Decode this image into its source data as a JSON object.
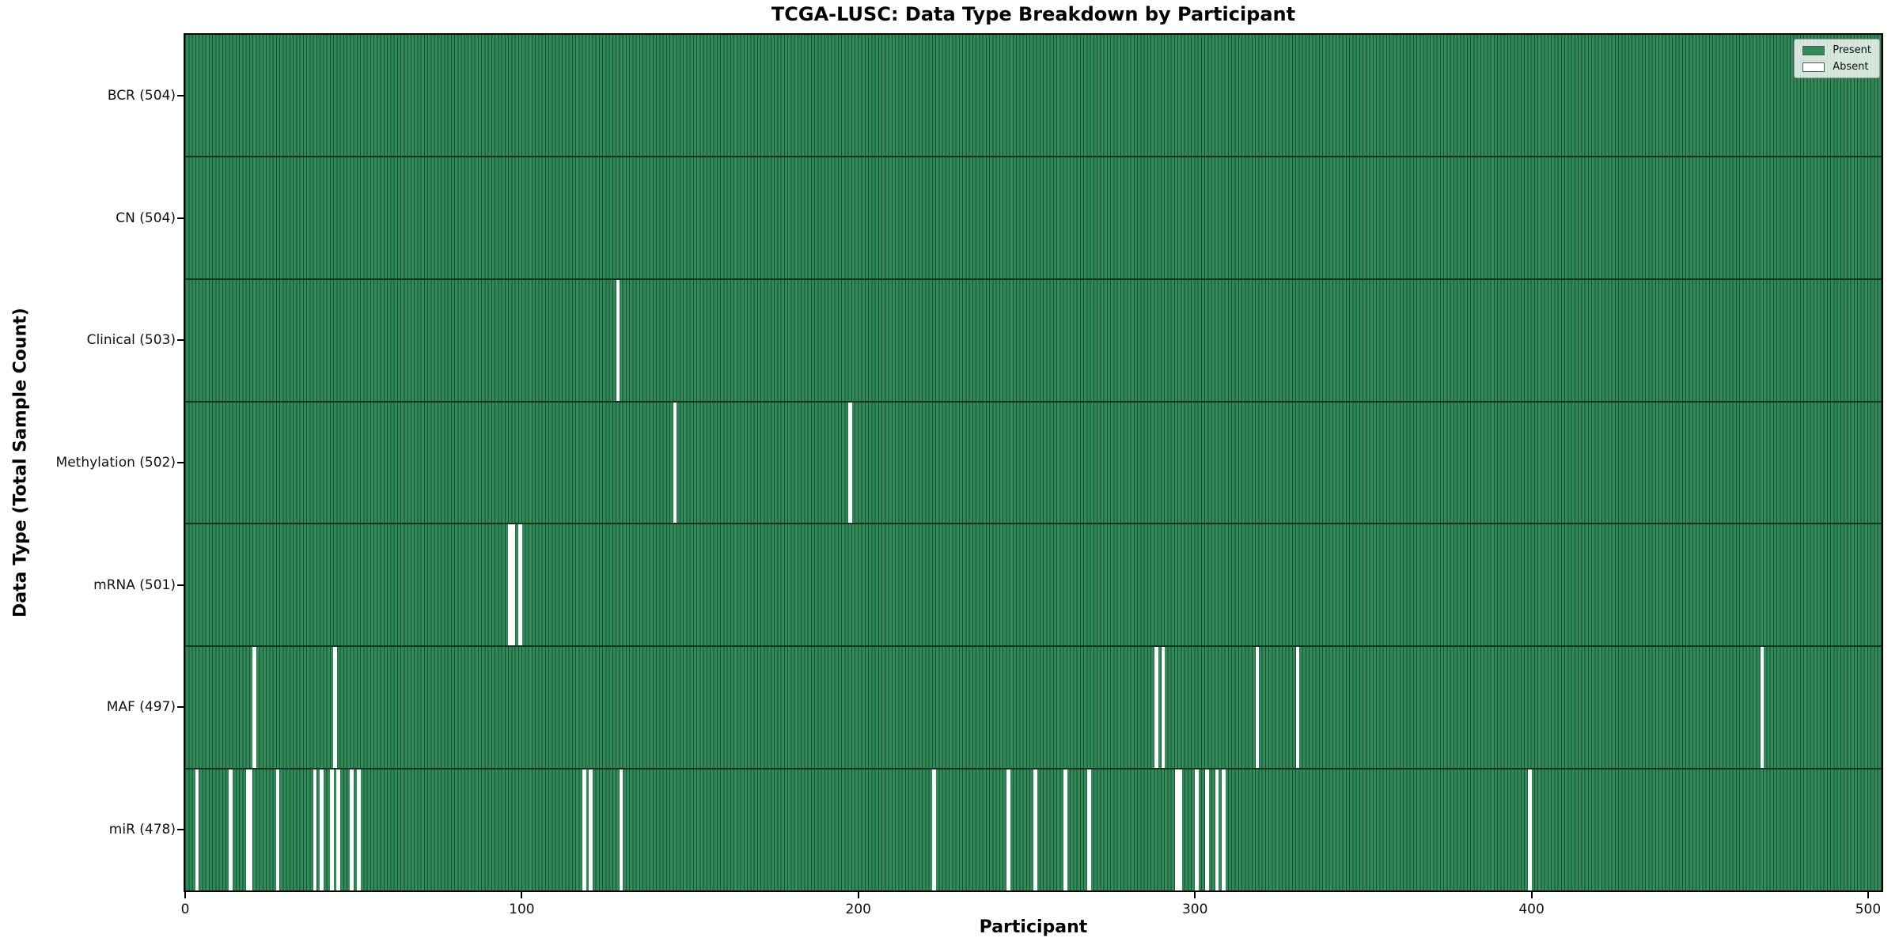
{
  "chart_data": {
    "type": "heatmap",
    "title": "TCGA-LUSC: Data Type Breakdown by Participant",
    "xlabel": "Participant",
    "ylabel": "Data Type (Total Sample Count)",
    "x_ticks": [
      0,
      100,
      200,
      300,
      400,
      500
    ],
    "x_max": 504,
    "grid": false,
    "legend_position": "upper right",
    "legend": [
      {
        "label": "Present",
        "color": "#2f8b58"
      },
      {
        "label": "Absent",
        "color": "#ffffff"
      }
    ],
    "colors": {
      "present_fill": "#2f8b58",
      "bar_edge": "#1f4b33",
      "absent_fill": "#ffffff",
      "spine": "#000000"
    },
    "rows": [
      {
        "label": "BCR (504)",
        "total": 504,
        "absent_participants": []
      },
      {
        "label": "CN (504)",
        "total": 504,
        "absent_participants": []
      },
      {
        "label": "Clinical (503)",
        "total": 503,
        "absent_participants": [
          128
        ]
      },
      {
        "label": "Methylation (502)",
        "total": 502,
        "absent_participants": [
          145,
          197
        ]
      },
      {
        "label": "mRNA (501)",
        "total": 501,
        "absent_participants": [
          96,
          97,
          99
        ]
      },
      {
        "label": "MAF (497)",
        "total": 497,
        "absent_participants": [
          20,
          44,
          288,
          290,
          318,
          330,
          468
        ]
      },
      {
        "label": "miR (478)",
        "total": 478,
        "absent_participants": [
          3,
          13,
          18,
          19,
          27,
          38,
          40,
          43,
          45,
          49,
          51,
          118,
          120,
          129,
          222,
          244,
          252,
          261,
          268,
          294,
          295,
          300,
          303,
          306,
          308,
          399
        ]
      }
    ]
  }
}
